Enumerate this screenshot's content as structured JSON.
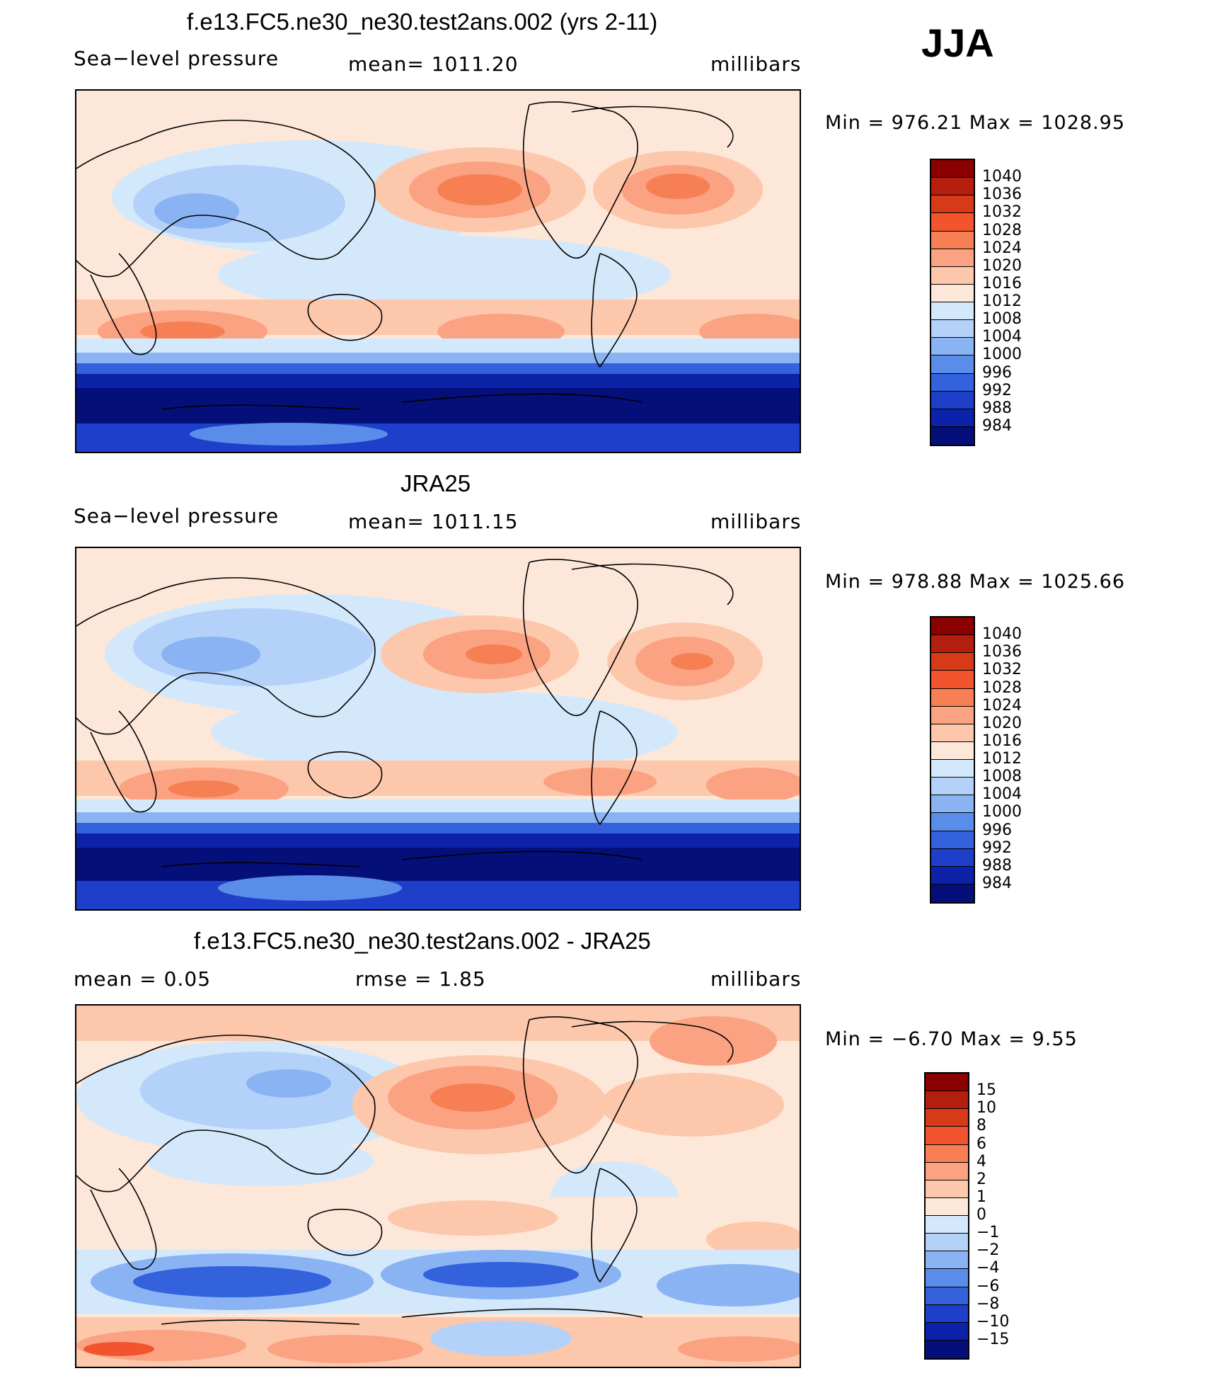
{
  "season": "JJA",
  "colors": {
    "pressure_scale": [
      "#8b0000",
      "#b41e0f",
      "#d63a17",
      "#f2542d",
      "#f77f54",
      "#fba283",
      "#fdc7ab",
      "#fde7d8",
      "#d3e8fb",
      "#b4d2f9",
      "#8ab3f3",
      "#5a8de9",
      "#3461dc",
      "#1d3fc9",
      "#0c22a9",
      "#050f7a"
    ],
    "diff_scale": [
      "#8b0000",
      "#b41e0f",
      "#d63a17",
      "#f2542d",
      "#f77f54",
      "#fba283",
      "#fdc7ab",
      "#fde7d8",
      "#d3e8fb",
      "#b4d2f9",
      "#8ab3f3",
      "#5a8de9",
      "#3461dc",
      "#1d3fc9",
      "#0c22a9",
      "#050f7a"
    ]
  },
  "panels": [
    {
      "title": "f.e13.FC5.ne30_ne30.test2ans.002 (yrs 2-11)",
      "left_label": "Sea−level pressure",
      "center_label": "mean=  1011.20",
      "right_label": "millibars",
      "minmax": "Min  =  976.21  Max  =  1028.95"
    },
    {
      "title": "JRA25",
      "left_label": "Sea−level pressure",
      "center_label": "mean=  1011.15",
      "right_label": "millibars",
      "minmax": "Min  =  978.88  Max  =  1025.66"
    },
    {
      "title": "f.e13.FC5.ne30_ne30.test2ans.002 - JRA25",
      "left_label": "mean  =      0.05",
      "center_label": "rmse  =      1.85",
      "right_label": "millibars",
      "minmax": "Min  =    −6.70  Max  =      9.55"
    }
  ],
  "chart_data": [
    {
      "type": "heatmap",
      "title": "f.e13.FC5.ne30_ne30.test2ans.002 (yrs 2-11)",
      "variable": "Sea-level pressure",
      "units": "millibars",
      "mean": 1011.2,
      "min": 976.21,
      "max": 1028.95,
      "colorbar_levels": [
        "1040",
        "1036",
        "1032",
        "1028",
        "1024",
        "1020",
        "1016",
        "1012",
        "1008",
        "1004",
        "1000",
        "996",
        "992",
        "988",
        "984"
      ]
    },
    {
      "type": "heatmap",
      "title": "JRA25",
      "variable": "Sea-level pressure",
      "units": "millibars",
      "mean": 1011.15,
      "min": 978.88,
      "max": 1025.66,
      "colorbar_levels": [
        "1040",
        "1036",
        "1032",
        "1028",
        "1024",
        "1020",
        "1016",
        "1012",
        "1008",
        "1004",
        "1000",
        "996",
        "992",
        "988",
        "984"
      ]
    },
    {
      "type": "heatmap",
      "title": "f.e13.FC5.ne30_ne30.test2ans.002 - JRA25",
      "units": "millibars",
      "mean": 0.05,
      "rmse": 1.85,
      "min": -6.7,
      "max": 9.55,
      "colorbar_levels": [
        "15",
        "10",
        "8",
        "6",
        "4",
        "2",
        "1",
        "0",
        "−1",
        "−2",
        "−4",
        "−6",
        "−8",
        "−10",
        "−15"
      ]
    }
  ]
}
